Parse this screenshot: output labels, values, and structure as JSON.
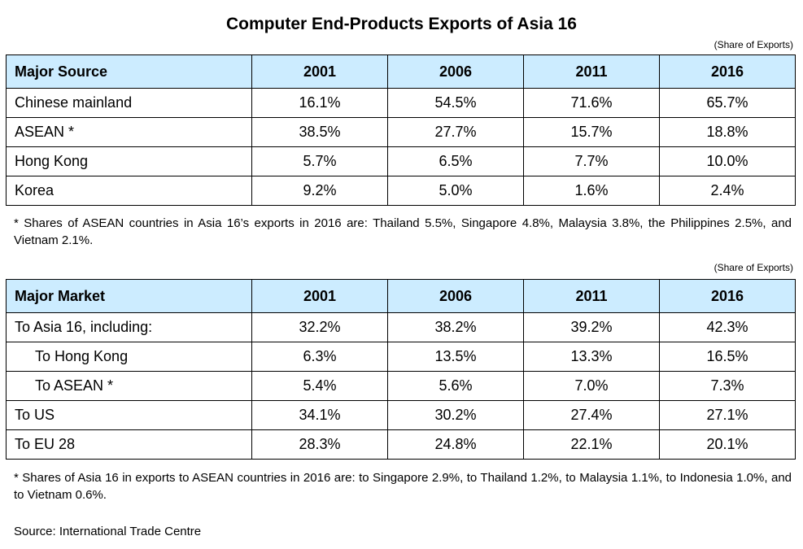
{
  "title": "Computer End-Products Exports of Asia 16",
  "unit_label": "(Share of Exports)",
  "table1": {
    "headers": [
      "Major Source",
      "2001",
      "2006",
      "2011",
      "2016"
    ],
    "rows": [
      {
        "label": "Chinese mainland",
        "values": [
          "16.1%",
          "54.5%",
          "71.6%",
          "65.7%"
        ]
      },
      {
        "label": "ASEAN *",
        "values": [
          "38.5%",
          "27.7%",
          "15.7%",
          "18.8%"
        ]
      },
      {
        "label": "Hong Kong",
        "values": [
          "5.7%",
          "6.5%",
          "7.7%",
          "10.0%"
        ]
      },
      {
        "label": "Korea",
        "values": [
          "9.2%",
          "5.0%",
          "1.6%",
          "2.4%"
        ]
      }
    ],
    "note": "* Shares of ASEAN countries in Asia 16’s exports in 2016 are: Thailand 5.5%, Singapore 4.8%, Malaysia 3.8%, the Philippines 2.5%, and Vietnam 2.1%."
  },
  "table2": {
    "headers": [
      "Major Market",
      "2001",
      "2006",
      "2011",
      "2016"
    ],
    "rows": [
      {
        "label": "To Asia 16, including:",
        "values": [
          "32.2%",
          "38.2%",
          "39.2%",
          "42.3%"
        ]
      },
      {
        "label": "To Hong Kong",
        "values": [
          "6.3%",
          "13.5%",
          "13.3%",
          "16.5%"
        ]
      },
      {
        "label": "To ASEAN *",
        "values": [
          "5.4%",
          "5.6%",
          "7.0%",
          "7.3%"
        ]
      },
      {
        "label": "To US",
        "values": [
          "34.1%",
          "30.2%",
          "27.4%",
          "27.1%"
        ]
      },
      {
        "label": "To EU 28",
        "values": [
          "28.3%",
          "24.8%",
          "22.1%",
          "20.1%"
        ]
      }
    ],
    "note": "* Shares of Asia 16 in exports to ASEAN countries in 2016 are: to Singapore 2.9%, to Thailand 1.2%, to Malaysia 1.1%, to Indonesia 1.0%, and to Vietnam 0.6%."
  },
  "source": "Source: International Trade Centre"
}
